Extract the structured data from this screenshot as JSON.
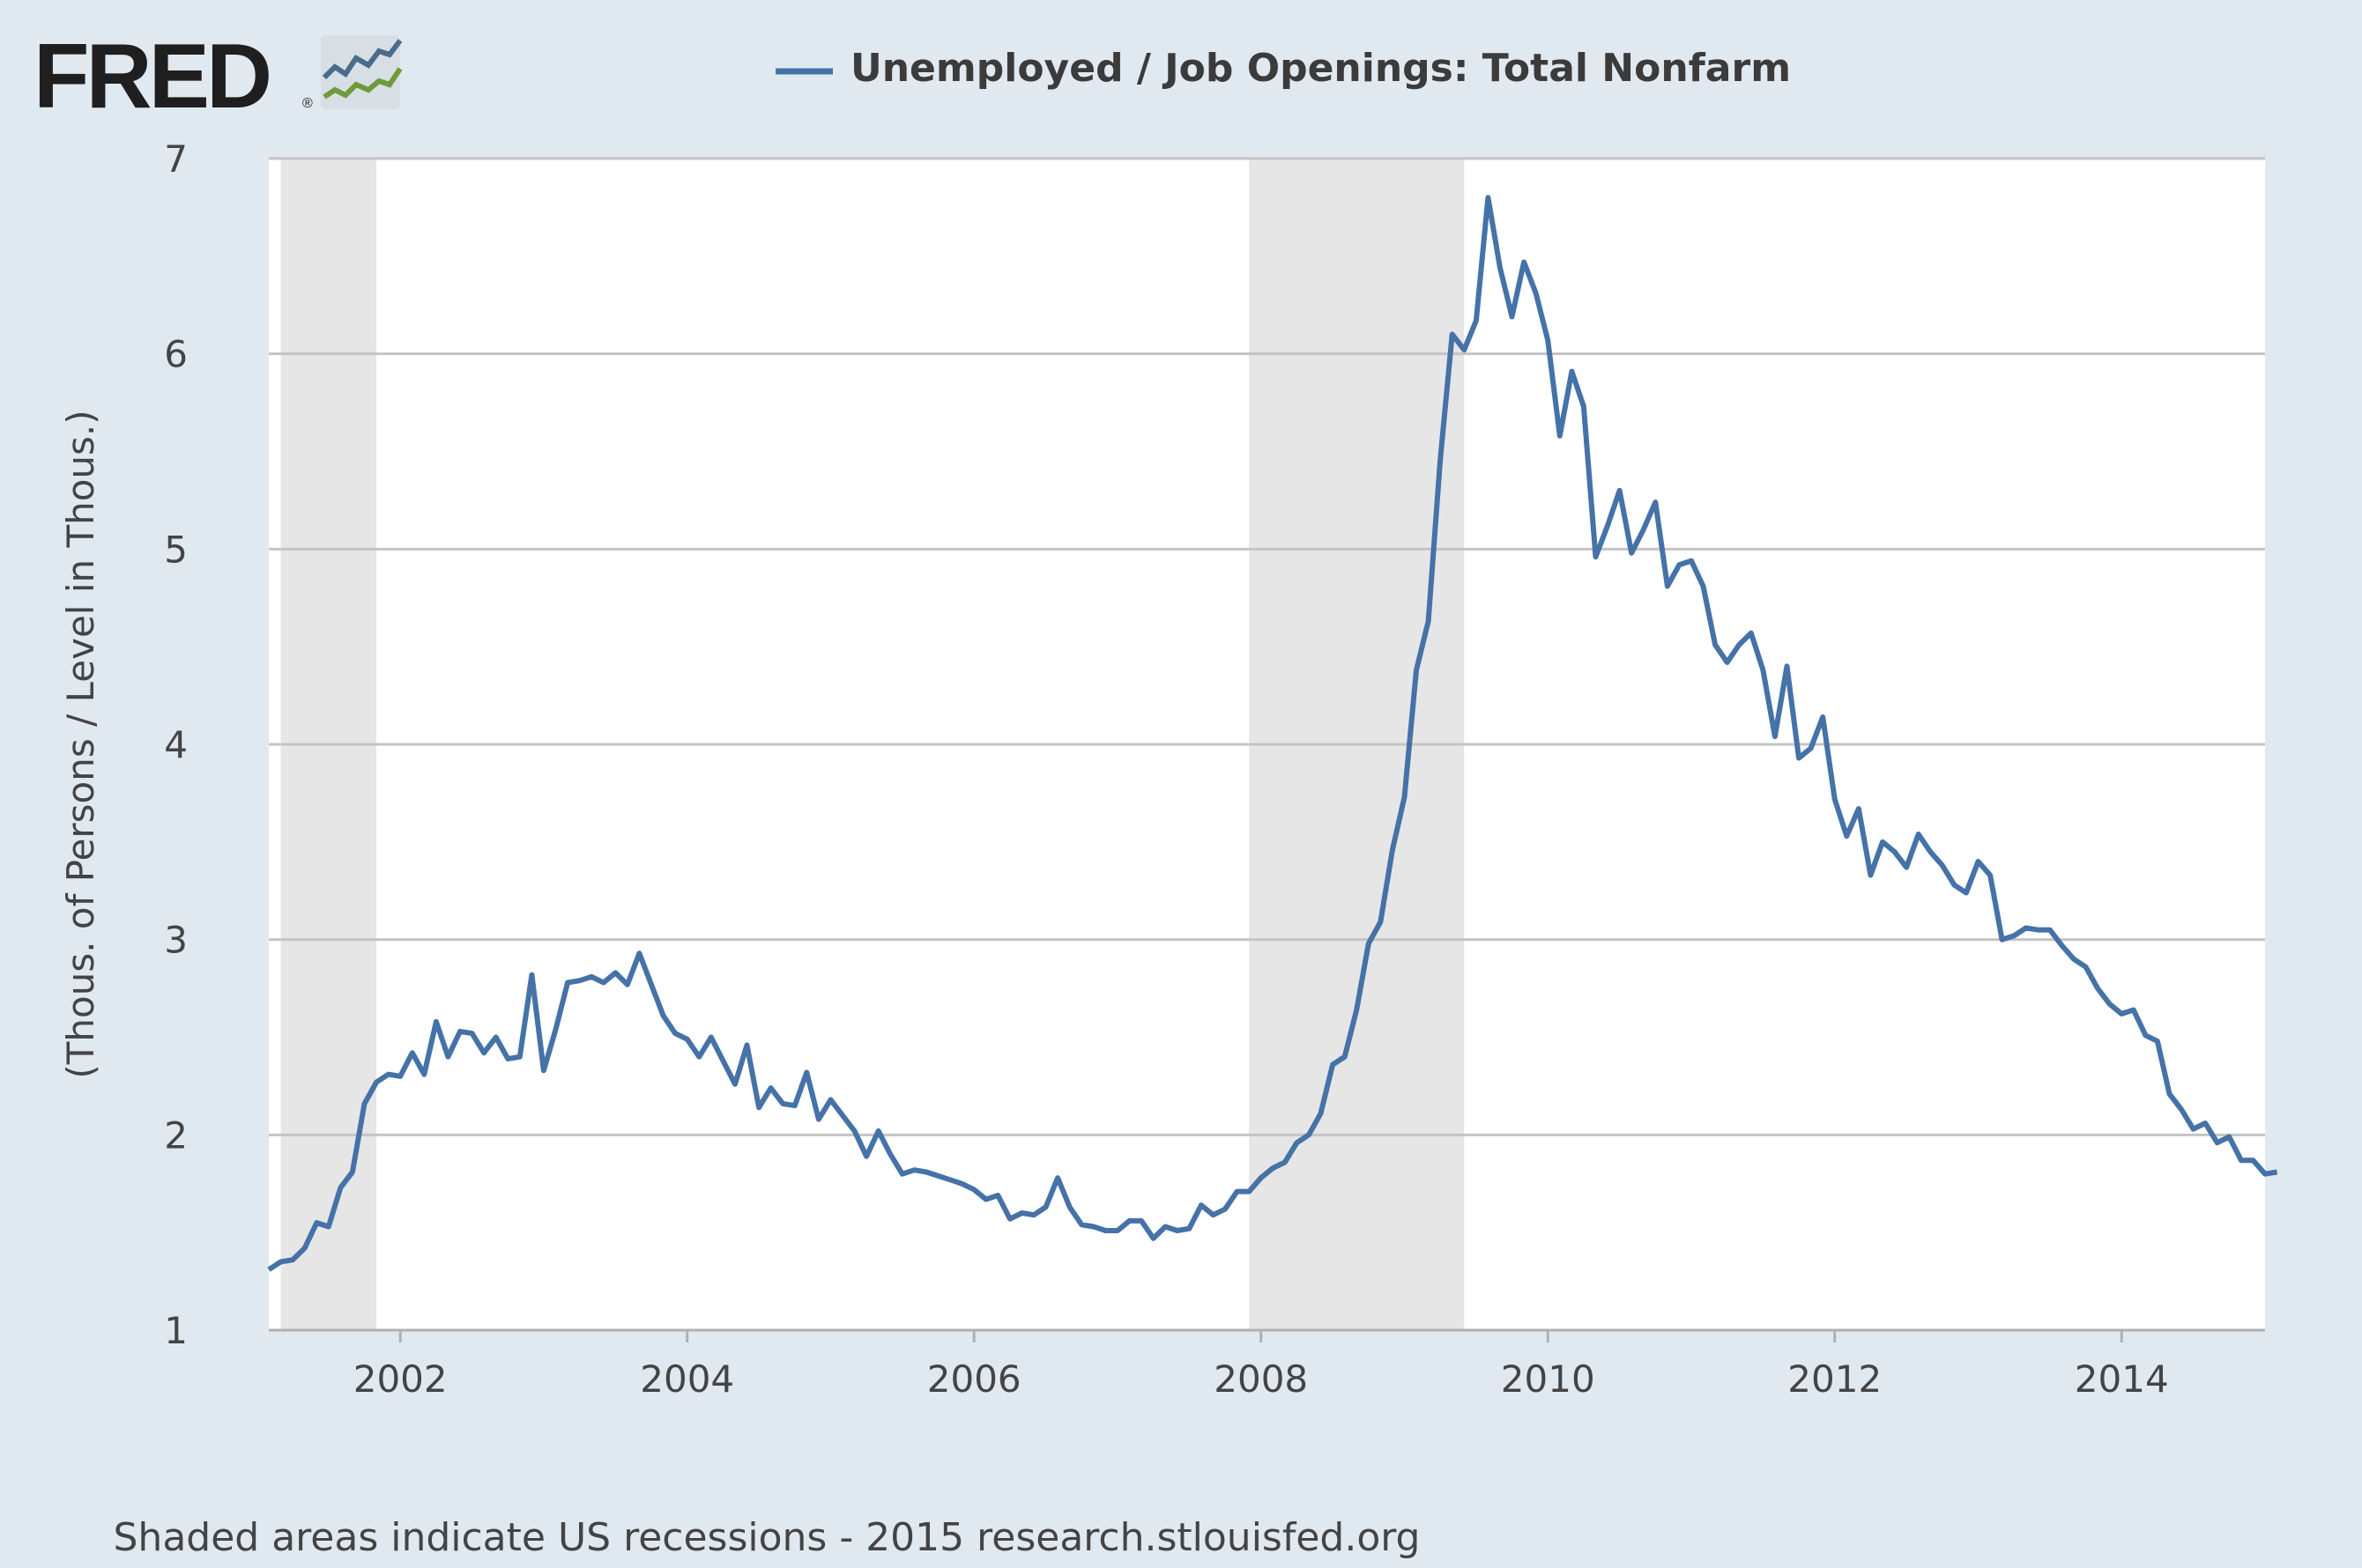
{
  "brand": {
    "name": "FRED",
    "registered": "®"
  },
  "chart_data": {
    "type": "line",
    "title": "Unemployed / Job Openings: Total Nonfarm",
    "ylabel": "(Thous. of Persons / Level in Thous.)",
    "xlabel": "",
    "xlim": [
      "2001-02-01",
      "2015-01-01"
    ],
    "ylim": [
      1,
      7
    ],
    "y_ticks": [
      1,
      2,
      3,
      4,
      5,
      6,
      7
    ],
    "x_ticks": [
      "2002",
      "2004",
      "2006",
      "2008",
      "2010",
      "2012",
      "2014"
    ],
    "grid": "horizontal",
    "legend": "top-center",
    "line_color": "#4572a7",
    "recession_color": "#e6e6e6",
    "recessions": [
      {
        "start": "2001-03-01",
        "end": "2001-11-01"
      },
      {
        "start": "2007-12-01",
        "end": "2009-06-01"
      }
    ],
    "series": [
      {
        "name": "Unemployed / Job Openings: Total Nonfarm",
        "start": "2001-02",
        "frequency": "monthly",
        "values": [
          1.31,
          1.35,
          1.36,
          1.42,
          1.55,
          1.53,
          1.73,
          1.81,
          2.16,
          2.27,
          2.31,
          2.3,
          2.42,
          2.31,
          2.58,
          2.4,
          2.53,
          2.52,
          2.42,
          2.5,
          2.39,
          2.4,
          2.82,
          2.33,
          2.54,
          2.78,
          2.79,
          2.81,
          2.78,
          2.83,
          2.77,
          2.93,
          2.77,
          2.61,
          2.52,
          2.49,
          2.4,
          2.5,
          2.38,
          2.26,
          2.46,
          2.14,
          2.24,
          2.16,
          2.15,
          2.32,
          2.08,
          2.18,
          2.1,
          2.02,
          1.89,
          2.02,
          1.9,
          1.8,
          1.82,
          1.81,
          1.79,
          1.77,
          1.75,
          1.72,
          1.67,
          1.69,
          1.57,
          1.6,
          1.59,
          1.63,
          1.78,
          1.63,
          1.54,
          1.53,
          1.51,
          1.51,
          1.56,
          1.56,
          1.47,
          1.53,
          1.51,
          1.52,
          1.64,
          1.59,
          1.62,
          1.71,
          1.71,
          1.78,
          1.83,
          1.86,
          1.96,
          2.0,
          2.11,
          2.36,
          2.4,
          2.64,
          2.98,
          3.09,
          3.46,
          3.73,
          4.38,
          4.63,
          5.46,
          6.1,
          6.02,
          6.17,
          6.8,
          6.44,
          6.19,
          6.47,
          6.31,
          6.07,
          5.58,
          5.91,
          5.73,
          4.96,
          5.12,
          5.3,
          4.98,
          5.1,
          5.24,
          4.81,
          4.92,
          4.94,
          4.81,
          4.51,
          4.42,
          4.51,
          4.57,
          4.38,
          4.04,
          4.4,
          3.93,
          3.98,
          4.14,
          3.72,
          3.53,
          3.67,
          3.33,
          3.5,
          3.45,
          3.37,
          3.54,
          3.45,
          3.38,
          3.28,
          3.24,
          3.4,
          3.33,
          3.0,
          3.02,
          3.06,
          3.05,
          3.05,
          2.97,
          2.9,
          2.86,
          2.75,
          2.67,
          2.62,
          2.64,
          2.51,
          2.48,
          2.21,
          2.13,
          2.03,
          2.06,
          1.96,
          1.99,
          1.87,
          1.87,
          1.8,
          1.81
        ]
      }
    ]
  },
  "footer": "Shaded areas indicate US recessions - 2015 research.stlouisfed.org"
}
